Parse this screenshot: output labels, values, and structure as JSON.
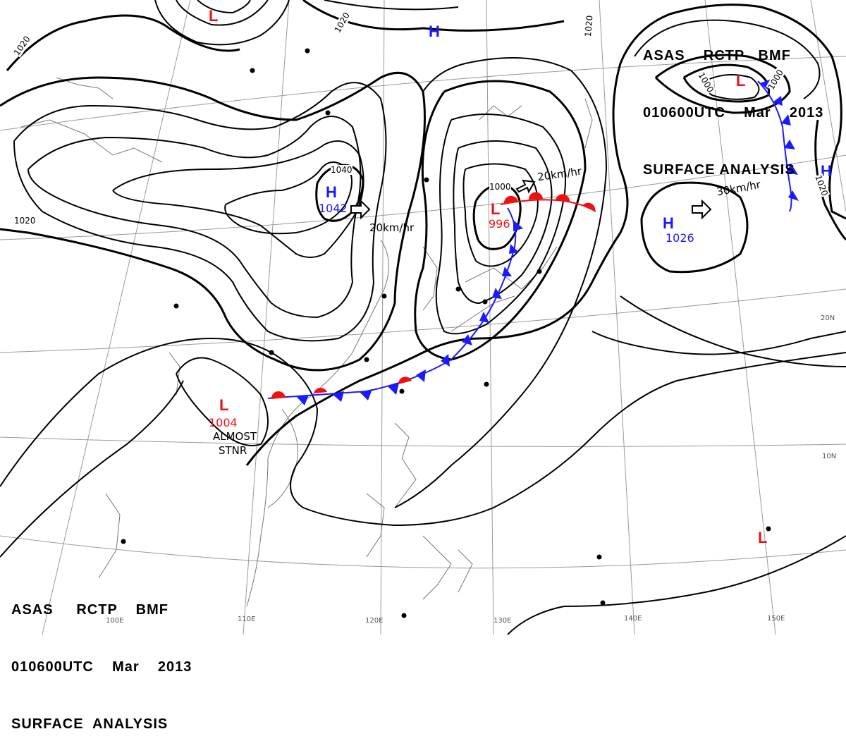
{
  "header_top": {
    "line1": "ASAS    RCTP   BMF",
    "line2": "010600UTC    Mar    2013",
    "line3": "SURFACE ANALYSIS"
  },
  "header_bottom": {
    "line1": "ASAS     RCTP    BMF",
    "line2": "010600UTC    Mar    2013",
    "line3": "SURFACE  ANALYSIS"
  },
  "pressure_systems": [
    {
      "id": "high-mongolia",
      "type": "H",
      "label": "H",
      "pressure": "1042",
      "color": "#1a1aff"
    },
    {
      "id": "high-north",
      "type": "H",
      "label": "H",
      "pressure": "",
      "color": "#1a1aff"
    },
    {
      "id": "high-pacific",
      "type": "H",
      "label": "H",
      "pressure": "1026",
      "color": "#1a1aff"
    },
    {
      "id": "high-east-edge",
      "type": "H",
      "label": "H",
      "pressure": "",
      "color": "#1a1aff"
    },
    {
      "id": "low-korea",
      "type": "L",
      "label": "L",
      "pressure": "996",
      "color": "#ee1111"
    },
    {
      "id": "low-south-china",
      "type": "L",
      "label": "L",
      "pressure": "1004",
      "color": "#ee1111"
    },
    {
      "id": "low-north",
      "type": "L",
      "label": "L",
      "pressure": "",
      "color": "#ee1111"
    },
    {
      "id": "low-kuril",
      "type": "L",
      "label": "L",
      "pressure": "",
      "color": "#ee1111"
    },
    {
      "id": "low-se",
      "type": "L",
      "label": "L",
      "pressure": "",
      "color": "#ee1111"
    }
  ],
  "isobar_labels": [
    "1020",
    "1020",
    "1020",
    "1040",
    "1000",
    "1000",
    "1000",
    "1020",
    "1020"
  ],
  "motions": [
    {
      "id": "motion-mongolia",
      "text": "20km/hr"
    },
    {
      "id": "motion-korea",
      "text": "20km/hr"
    },
    {
      "id": "motion-pacific",
      "text": "30km/hr"
    }
  ],
  "notes": {
    "stationary_1": "ALMOST",
    "stationary_2": "STNR"
  },
  "longitudes": [
    "110E",
    "120E",
    "130E",
    "140E",
    "150E",
    "100E"
  ],
  "latitudes": [
    "20N",
    "10N"
  ],
  "colors": {
    "cold_front": "#1a1aff",
    "warm_front": "#ee1111",
    "isobar": "#000000"
  }
}
